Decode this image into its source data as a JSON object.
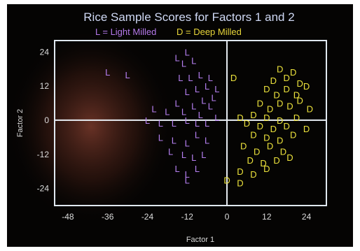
{
  "colors": {
    "background": "#050403",
    "light_milled": "#b57ff0",
    "deep_milled": "#ece23c",
    "axes": "#e0e8f0",
    "title": "#cfd8f4"
  },
  "chart_data": {
    "type": "scatter",
    "title": "Rice Sample Scores for Factors 1 and 2",
    "legend": {
      "placement": "top-center",
      "entries": [
        {
          "marker": "L",
          "text": "L = Light Milled"
        },
        {
          "marker": "D",
          "text": "D = Deep Milled"
        }
      ]
    },
    "xlabel": "Factor 1",
    "ylabel": "Factor 2",
    "xlim": [
      -52,
      30
    ],
    "ylim": [
      -30,
      28
    ],
    "x_ticks": [
      "-48",
      "-36",
      "-24",
      "-12",
      "0",
      "12",
      "24"
    ],
    "y_ticks": [
      "24",
      "12",
      "0",
      "-12",
      "-24"
    ],
    "grid": false,
    "reference_lines": {
      "x": 0,
      "y": 0
    },
    "series": [
      {
        "name": "Light Milled",
        "marker": "L",
        "points": [
          [
            -36,
            17
          ],
          [
            -30,
            16
          ],
          [
            -15,
            22
          ],
          [
            -12,
            24
          ],
          [
            -13,
            20
          ],
          [
            -10,
            21
          ],
          [
            -14,
            15
          ],
          [
            -11,
            15
          ],
          [
            -8,
            16
          ],
          [
            -5,
            15
          ],
          [
            -6,
            12
          ],
          [
            -9,
            11
          ],
          [
            -3,
            11
          ],
          [
            -12,
            10
          ],
          [
            -4,
            8
          ],
          [
            -7,
            7
          ],
          [
            -15,
            6
          ],
          [
            -10,
            5
          ],
          [
            -5,
            5
          ],
          [
            -22,
            4
          ],
          [
            -18,
            3
          ],
          [
            -13,
            3
          ],
          [
            -8,
            2
          ],
          [
            -24,
            0
          ],
          [
            -20,
            -1
          ],
          [
            -16,
            -1
          ],
          [
            -12,
            0
          ],
          [
            -9,
            -1
          ],
          [
            -6,
            -1
          ],
          [
            -3,
            1
          ],
          [
            -20,
            -6
          ],
          [
            -16,
            -7
          ],
          [
            -12,
            -8
          ],
          [
            -9,
            -5
          ],
          [
            -6,
            -7
          ],
          [
            -17,
            -11
          ],
          [
            -13,
            -12
          ],
          [
            -10,
            -13
          ],
          [
            -7,
            -12
          ],
          [
            -15,
            -17
          ],
          [
            -12,
            -19
          ],
          [
            -9,
            -17
          ],
          [
            -12,
            -21
          ]
        ]
      },
      {
        "name": "Deep Milled",
        "marker": "D",
        "points": [
          [
            2,
            15
          ],
          [
            16,
            18
          ],
          [
            20,
            17
          ],
          [
            14,
            14
          ],
          [
            18,
            15
          ],
          [
            22,
            13
          ],
          [
            12,
            11
          ],
          [
            18,
            11
          ],
          [
            24,
            12
          ],
          [
            15,
            9
          ],
          [
            21,
            9
          ],
          [
            10,
            6
          ],
          [
            16,
            6
          ],
          [
            22,
            7
          ],
          [
            13,
            4
          ],
          [
            19,
            5
          ],
          [
            25,
            4
          ],
          [
            4,
            1
          ],
          [
            8,
            2
          ],
          [
            12,
            1
          ],
          [
            16,
            0
          ],
          [
            21,
            1
          ],
          [
            6,
            -1
          ],
          [
            10,
            -2
          ],
          [
            14,
            -3
          ],
          [
            24,
            -3
          ],
          [
            18,
            -2
          ],
          [
            8,
            -5
          ],
          [
            12,
            -6
          ],
          [
            16,
            -7
          ],
          [
            20,
            -5
          ],
          [
            5,
            -9
          ],
          [
            9,
            -11
          ],
          [
            13,
            -9
          ],
          [
            17,
            -11
          ],
          [
            7,
            -14
          ],
          [
            11,
            -15
          ],
          [
            15,
            -14
          ],
          [
            19,
            -13
          ],
          [
            4,
            -18
          ],
          [
            8,
            -19
          ],
          [
            12,
            -17
          ],
          [
            0,
            -21
          ],
          [
            4,
            -22
          ]
        ]
      }
    ]
  }
}
